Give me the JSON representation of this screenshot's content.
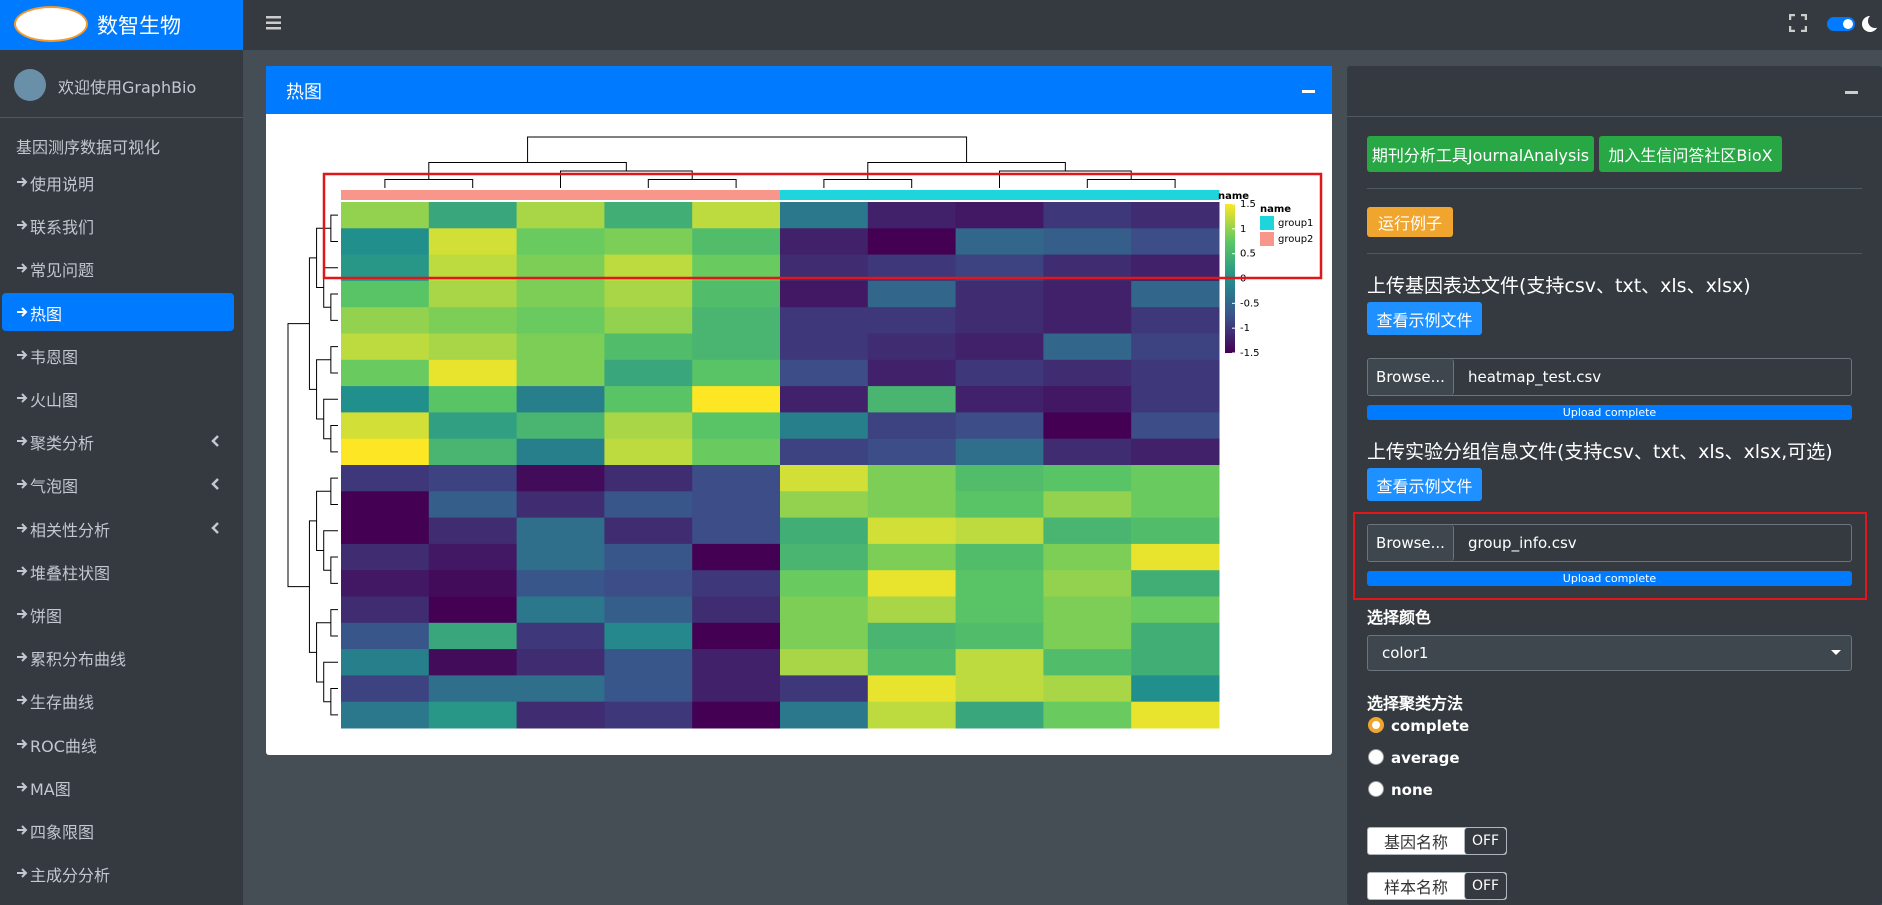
{
  "header": {
    "brand": "数智生物"
  },
  "sidebar": {
    "user": "欢迎使用GraphBio",
    "section": "基因测序数据可视化",
    "items": [
      {
        "label": "使用说明"
      },
      {
        "label": "联系我们"
      },
      {
        "label": "常见问题"
      },
      {
        "label": "热图",
        "active": true
      },
      {
        "label": "韦恩图"
      },
      {
        "label": "火山图"
      },
      {
        "label": "聚类分析",
        "expandable": true
      },
      {
        "label": "气泡图",
        "expandable": true
      },
      {
        "label": "相关性分析",
        "expandable": true
      },
      {
        "label": "堆叠柱状图"
      },
      {
        "label": "饼图"
      },
      {
        "label": "累积分布曲线"
      },
      {
        "label": "生存曲线"
      },
      {
        "label": "ROC曲线"
      },
      {
        "label": "MA图"
      },
      {
        "label": "四象限图"
      },
      {
        "label": "主成分分析"
      }
    ]
  },
  "card": {
    "title": "热图"
  },
  "heatmap": {
    "values": [
      [
        1.0,
        0.3,
        1.1,
        0.4,
        1.2,
        -0.3,
        -1.2,
        -1.3,
        -1.0,
        -1.1
      ],
      [
        0.0,
        1.3,
        0.8,
        0.9,
        0.6,
        -1.2,
        -1.5,
        -0.5,
        -0.6,
        -0.8
      ],
      [
        0.1,
        1.2,
        0.9,
        1.2,
        0.8,
        -1.1,
        -1.0,
        -0.9,
        -1.1,
        -1.2
      ],
      [
        0.7,
        1.1,
        0.9,
        1.1,
        0.6,
        -1.3,
        -0.5,
        -1.1,
        -1.2,
        -0.5
      ],
      [
        1.0,
        0.9,
        0.8,
        1.0,
        0.5,
        -1.0,
        -1.0,
        -1.1,
        -1.2,
        -1.0
      ],
      [
        1.2,
        1.1,
        0.9,
        0.6,
        0.5,
        -1.0,
        -1.1,
        -1.2,
        -0.5,
        -0.9
      ],
      [
        0.8,
        1.4,
        0.9,
        0.3,
        0.7,
        -0.8,
        -1.2,
        -1.0,
        -1.1,
        -1.0
      ],
      [
        0.0,
        0.7,
        -0.2,
        0.7,
        1.5,
        -1.2,
        0.5,
        -1.2,
        -1.3,
        -1.0
      ],
      [
        1.3,
        0.2,
        0.5,
        1.1,
        0.7,
        -0.2,
        -0.9,
        -0.8,
        -1.5,
        -0.8
      ],
      [
        1.5,
        0.5,
        -0.2,
        1.2,
        0.8,
        -0.9,
        -0.8,
        -0.4,
        -1.1,
        -1.2
      ],
      [
        -1.0,
        -0.9,
        -1.4,
        -1.1,
        -0.8,
        1.3,
        0.9,
        0.6,
        0.7,
        0.8
      ],
      [
        -1.5,
        -0.6,
        -1.1,
        -0.7,
        -0.8,
        1.0,
        0.9,
        0.7,
        1.0,
        0.8
      ],
      [
        -1.5,
        -1.1,
        -0.4,
        -1.1,
        -0.8,
        0.4,
        1.3,
        1.2,
        0.5,
        0.6
      ],
      [
        -1.1,
        -1.3,
        -0.4,
        -0.7,
        -1.5,
        0.5,
        0.9,
        0.6,
        0.9,
        1.4
      ],
      [
        -1.3,
        -1.4,
        -0.7,
        -0.8,
        -1.0,
        0.8,
        1.4,
        0.7,
        1.0,
        0.4
      ],
      [
        -1.1,
        -1.5,
        -0.3,
        -0.6,
        -1.1,
        0.9,
        1.1,
        0.7,
        0.9,
        0.8
      ],
      [
        -0.7,
        0.3,
        -1.0,
        -0.1,
        -1.5,
        0.9,
        0.5,
        0.6,
        0.9,
        0.4
      ],
      [
        -0.2,
        -1.4,
        -1.1,
        -0.7,
        -1.2,
        1.1,
        0.6,
        1.2,
        0.6,
        0.4
      ],
      [
        -0.9,
        -0.4,
        -0.4,
        -0.7,
        -1.2,
        -1.0,
        1.4,
        1.2,
        1.1,
        0.0
      ],
      [
        -0.3,
        0.1,
        -1.1,
        -1.0,
        -1.5,
        -0.3,
        1.2,
        0.3,
        0.8,
        1.4
      ]
    ],
    "column_groups": [
      "group2",
      "group2",
      "group2",
      "group2",
      "group2",
      "group1",
      "group1",
      "group1",
      "group1",
      "group1"
    ],
    "colors": [
      "#440154",
      "#3b528b",
      "#21908c",
      "#5dc863",
      "#fde725"
    ],
    "colorbar": {
      "title": "name",
      "lim": [
        -1.5,
        1.5
      ],
      "ticks": [
        1.5,
        1,
        0.5,
        0,
        -0.5,
        -1,
        -1.5
      ]
    },
    "annotation": {
      "title": "name",
      "groups": [
        {
          "name": "group1",
          "color": "#1fd5dc"
        },
        {
          "name": "group2",
          "color": "#f8968c"
        }
      ]
    }
  },
  "panel": {
    "links": [
      "期刊分析工具JournalAnalysis",
      "加入生信问答社区BioX"
    ],
    "run_example": "运行例子",
    "uploads": [
      {
        "label": "上传基因表达文件(支持csv、txt、xls、xlsx)",
        "example": "查看示例文件",
        "browse": "Browse...",
        "file": "heatmap_test.csv",
        "status": "Upload complete"
      },
      {
        "label": "上传实验分组信息文件(支持csv、txt、xls、xlsx,可选)",
        "example": "查看示例文件",
        "browse": "Browse...",
        "file": "group_info.csv",
        "status": "Upload complete"
      }
    ],
    "color": {
      "label": "选择颜色",
      "value": "color1"
    },
    "cluster": {
      "label": "选择聚类方法",
      "options": [
        {
          "name": "complete",
          "checked": true
        },
        {
          "name": "average"
        },
        {
          "name": "none"
        }
      ]
    },
    "toggles": [
      {
        "label": "基因名称",
        "state": "OFF"
      },
      {
        "label": "样本名称",
        "state": "OFF"
      }
    ]
  }
}
